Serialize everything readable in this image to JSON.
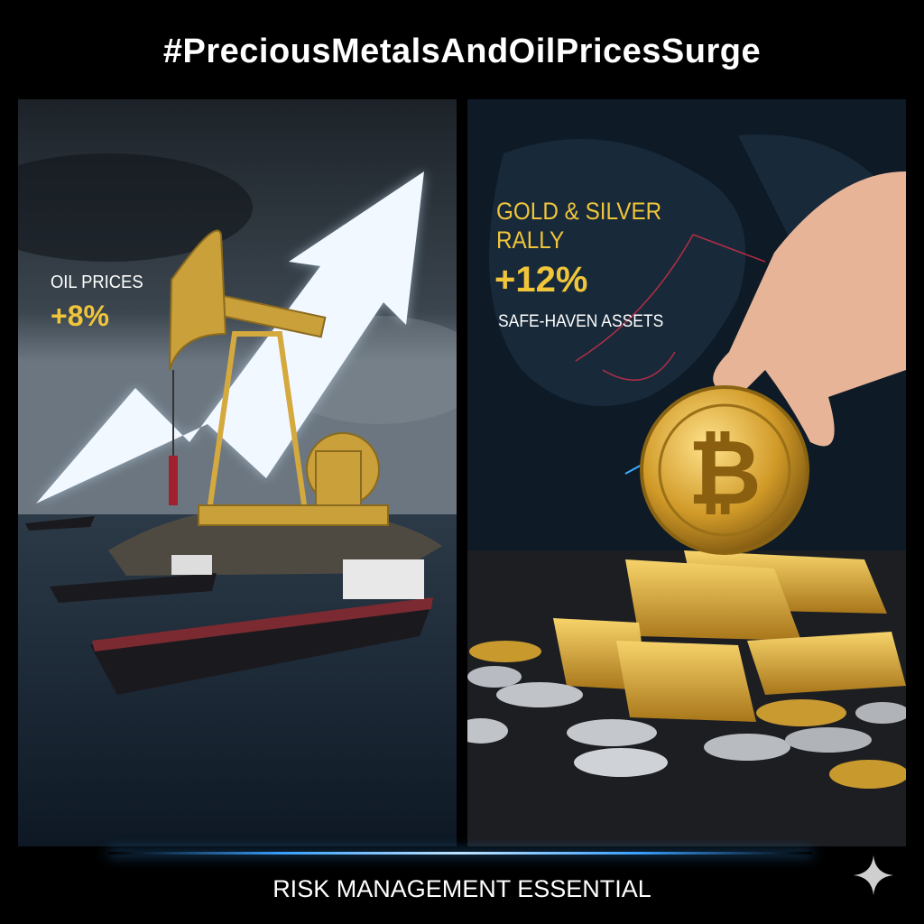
{
  "title": "#PreciousMetalsAndOilPricesSurge",
  "left_panel": {
    "caption": "OIL PRICES",
    "change": "+8%"
  },
  "right_panel": {
    "caption_line1": "GOLD & SILVER",
    "caption_line2": "RALLY",
    "change": "+12%",
    "subcaption": "SAFE-HAVEN ASSETS"
  },
  "footer": "RISK MANAGEMENT ESSENTIAL",
  "colors": {
    "accent_gold": "#f0c53a",
    "glow_blue": "#3aa0ff",
    "background": "#000000"
  },
  "icons": {
    "corner": "sparkle-icon",
    "coin": "bitcoin-icon"
  }
}
